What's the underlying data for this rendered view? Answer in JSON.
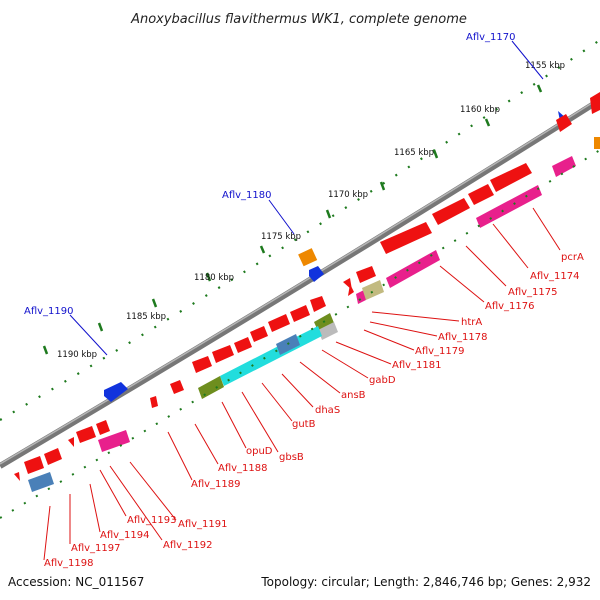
{
  "map": {
    "title": "Anoxybacillus flavithermus WK1, complete genome",
    "accession": "Accession: NC_011567",
    "topology": "Topology: circular; Length: 2,846,746 bp; Genes: 2,932"
  },
  "colors": {
    "backbone": "#8a8a8a",
    "red_gene": "#ee1111",
    "blue_gene": "#1133dd",
    "orange_gene": "#ee8800",
    "pink_feature": "#e8208c",
    "cyan_feature": "#22dddd",
    "olive_feature": "#6e8e1e",
    "khaki_feature": "#c2ba80",
    "steel_feature": "#4a80b8",
    "grey_feature": "#bbbbbb",
    "tick_green": "#1e7a1e",
    "label_blue": "#1111cc",
    "label_red": "#dd1111"
  },
  "scale_labels": [
    "1155 kbp",
    "1160 kbp",
    "1165 kbp",
    "1170 kbp",
    "1175 kbp",
    "1180 kbp",
    "1185 kbp",
    "1190 kbp"
  ],
  "top_labels": [
    "Aflv_1170",
    "Aflv_1180",
    "Aflv_1190"
  ],
  "gene_labels": [
    "pcrA",
    "Aflv_1174",
    "Aflv_1175",
    "Aflv_1176",
    "htrA",
    "Aflv_1178",
    "Aflv_1179",
    "Aflv_1181",
    "gabD",
    "ansB",
    "dhaS",
    "gutB",
    "gbsB",
    "opuD",
    "Aflv_1188",
    "Aflv_1189",
    "Aflv_1191",
    "Aflv_1192",
    "Aflv_1193",
    "Aflv_1194",
    "Aflv_1197",
    "Aflv_1198"
  ]
}
